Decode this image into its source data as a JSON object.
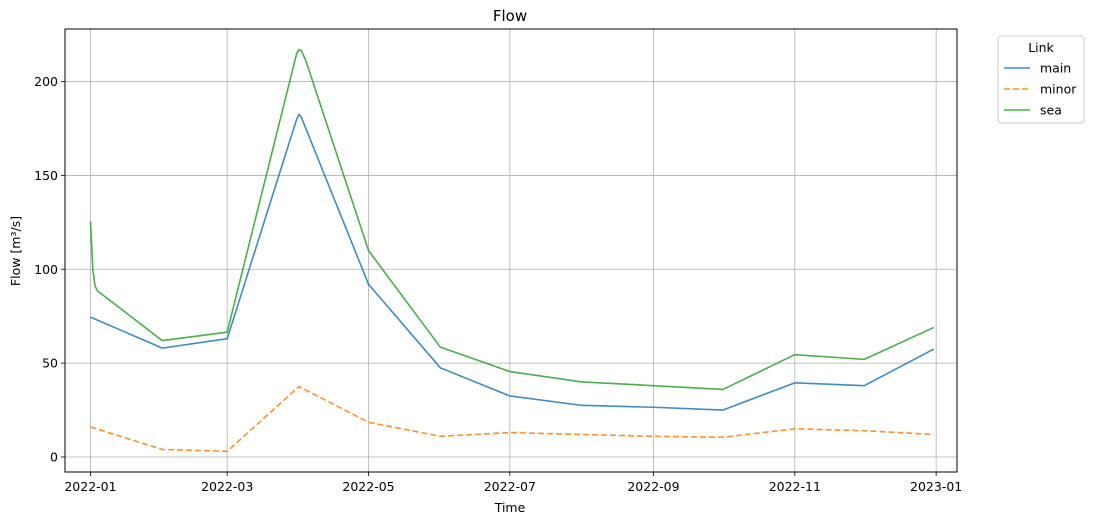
{
  "chart_data": {
    "type": "line",
    "title": "Flow",
    "xlabel": "Time",
    "ylabel": "Flow [m³/s]",
    "xlim": [
      "2021-12-21",
      "2023-01-10"
    ],
    "ylim": [
      -8,
      228
    ],
    "x_ticks": [
      "2022-01-01",
      "2022-03-01",
      "2022-05-01",
      "2022-07-01",
      "2022-09-01",
      "2022-11-01",
      "2023-01-01"
    ],
    "x_tick_labels": [
      "2022-01",
      "2022-03",
      "2022-05",
      "2022-07",
      "2022-09",
      "2022-11",
      "2023-01"
    ],
    "y_ticks": [
      0,
      50,
      100,
      150,
      200
    ],
    "y_tick_labels": [
      "0",
      "50",
      "100",
      "150",
      "200"
    ],
    "grid": true,
    "legend": {
      "title": "Link",
      "placement": "outside upper right"
    },
    "series": [
      {
        "name": "main",
        "color": "#1f77b4",
        "dash": "solid",
        "points": [
          [
            "2022-01-01",
            74.5
          ],
          [
            "2022-02-01",
            58
          ],
          [
            "2022-03-01",
            63
          ],
          [
            "2022-03-31",
            180
          ],
          [
            "2022-04-01",
            182.5
          ],
          [
            "2022-04-02",
            181
          ],
          [
            "2022-05-01",
            92
          ],
          [
            "2022-06-01",
            47.5
          ],
          [
            "2022-07-01",
            32.5
          ],
          [
            "2022-08-01",
            27.5
          ],
          [
            "2022-09-01",
            26.5
          ],
          [
            "2022-10-01",
            25
          ],
          [
            "2022-11-01",
            39.5
          ],
          [
            "2022-12-01",
            38
          ],
          [
            "2022-12-31",
            57.5
          ]
        ]
      },
      {
        "name": "minor",
        "color": "#ff7f0e",
        "dash": "dashed",
        "points": [
          [
            "2022-01-01",
            16
          ],
          [
            "2022-02-01",
            4
          ],
          [
            "2022-03-01",
            3
          ],
          [
            "2022-04-01",
            37.5
          ],
          [
            "2022-05-01",
            18.5
          ],
          [
            "2022-06-01",
            11
          ],
          [
            "2022-07-01",
            13
          ],
          [
            "2022-08-01",
            12
          ],
          [
            "2022-09-01",
            11
          ],
          [
            "2022-10-01",
            10.5
          ],
          [
            "2022-11-01",
            15
          ],
          [
            "2022-12-01",
            14
          ],
          [
            "2022-12-31",
            12
          ]
        ]
      },
      {
        "name": "sea",
        "color": "#2ca02c",
        "dash": "solid",
        "points": [
          [
            "2022-01-01",
            125.5
          ],
          [
            "2022-01-02",
            100
          ],
          [
            "2022-01-03",
            91
          ],
          [
            "2022-01-04",
            88.5
          ],
          [
            "2022-02-01",
            62
          ],
          [
            "2022-03-01",
            66.5
          ],
          [
            "2022-03-31",
            215
          ],
          [
            "2022-04-01",
            217
          ],
          [
            "2022-04-02",
            216.5
          ],
          [
            "2022-04-04",
            211
          ],
          [
            "2022-05-01",
            110
          ],
          [
            "2022-06-01",
            58.5
          ],
          [
            "2022-07-01",
            45.5
          ],
          [
            "2022-08-01",
            40
          ],
          [
            "2022-09-01",
            38
          ],
          [
            "2022-10-01",
            36
          ],
          [
            "2022-11-01",
            54.5
          ],
          [
            "2022-12-01",
            52
          ],
          [
            "2022-12-31",
            69
          ]
        ]
      }
    ]
  }
}
